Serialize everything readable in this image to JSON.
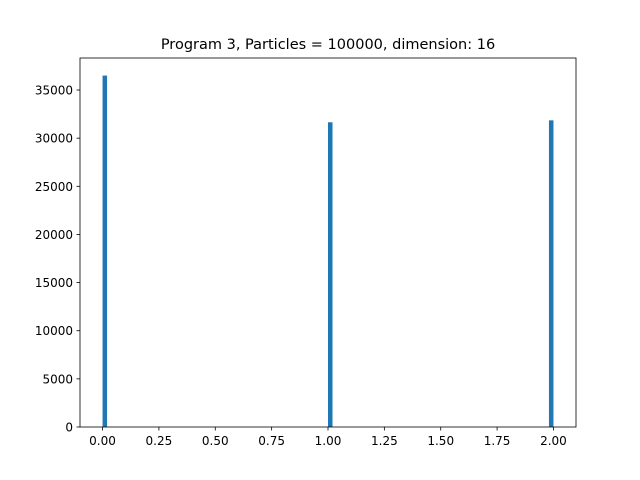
{
  "chart_data": {
    "type": "bar",
    "title": "Program 3, Particles = 100000, dimension: 16",
    "xlabel": "",
    "ylabel": "",
    "bars": [
      {
        "x_start": 0.0,
        "x_end": 0.02,
        "value": 36500
      },
      {
        "x_start": 1.0,
        "x_end": 1.02,
        "value": 31650
      },
      {
        "x_start": 1.98,
        "x_end": 2.0,
        "value": 31850
      }
    ],
    "xlim": [
      -0.1,
      2.1
    ],
    "ylim": [
      0,
      38325
    ],
    "x_ticks": [
      0.0,
      0.25,
      0.5,
      0.75,
      1.0,
      1.25,
      1.5,
      1.75,
      2.0
    ],
    "x_tick_labels": [
      "0.00",
      "0.25",
      "0.50",
      "0.75",
      "1.00",
      "1.25",
      "1.50",
      "1.75",
      "2.00"
    ],
    "y_ticks": [
      0,
      5000,
      10000,
      15000,
      20000,
      25000,
      30000,
      35000
    ],
    "y_tick_labels": [
      "0",
      "5000",
      "10000",
      "15000",
      "20000",
      "25000",
      "30000",
      "35000"
    ],
    "grid": false,
    "bar_color": "#1f77b4",
    "axis_color": "#000000",
    "background": "#ffffff"
  }
}
